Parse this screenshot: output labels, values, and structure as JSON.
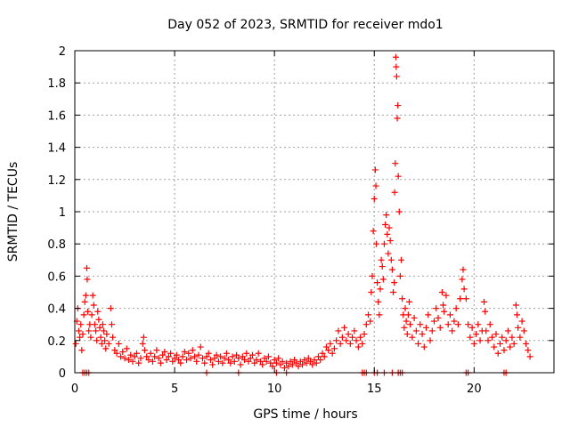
{
  "chart_data": {
    "type": "scatter",
    "title": "Day 052 of 2023, SRMTID for receiver mdo1",
    "xlabel": "GPS time / hours",
    "ylabel": "SRMTID / TECUs",
    "xlim": [
      0,
      24
    ],
    "ylim": [
      0,
      2
    ],
    "x_ticks": [
      0,
      5,
      10,
      15,
      20
    ],
    "y_ticks": [
      0,
      0.2,
      0.4,
      0.6,
      0.8,
      1,
      1.2,
      1.4,
      1.6,
      1.8,
      2
    ],
    "x_tick_labels": [
      "0",
      "5",
      "10",
      "15",
      "20"
    ],
    "y_tick_labels": [
      "0",
      "0.2",
      "0.4",
      "0.6",
      "0.8",
      "1",
      "1.2",
      "1.4",
      "1.6",
      "1.8",
      "2"
    ],
    "grid": true,
    "marker": "+",
    "series": [
      {
        "name": "SRMTID",
        "color": "#ff0000",
        "points": [
          [
            0.05,
            0.18
          ],
          [
            0.1,
            0.32
          ],
          [
            0.15,
            0.4
          ],
          [
            0.2,
            0.26
          ],
          [
            0.25,
            0.22
          ],
          [
            0.3,
            0.3
          ],
          [
            0.35,
            0.14
          ],
          [
            0.4,
            0.24
          ],
          [
            0.45,
            0.36
          ],
          [
            0.5,
            0.44
          ],
          [
            0.55,
            0.48
          ],
          [
            0.6,
            0.65
          ],
          [
            0.62,
            0.58
          ],
          [
            0.65,
            0.38
          ],
          [
            0.7,
            0.26
          ],
          [
            0.75,
            0.3
          ],
          [
            0.8,
            0.22
          ],
          [
            0.85,
            0.36
          ],
          [
            0.9,
            0.48
          ],
          [
            0.95,
            0.42
          ],
          [
            1.0,
            0.3
          ],
          [
            1.05,
            0.26
          ],
          [
            1.1,
            0.2
          ],
          [
            1.15,
            0.38
          ],
          [
            1.2,
            0.33
          ],
          [
            1.25,
            0.28
          ],
          [
            1.3,
            0.22
          ],
          [
            1.35,
            0.18
          ],
          [
            1.4,
            0.3
          ],
          [
            1.45,
            0.26
          ],
          [
            1.5,
            0.2
          ],
          [
            1.55,
            0.15
          ],
          [
            1.6,
            0.24
          ],
          [
            1.7,
            0.18
          ],
          [
            1.8,
            0.4
          ],
          [
            1.85,
            0.3
          ],
          [
            1.9,
            0.22
          ],
          [
            2.0,
            0.14
          ],
          [
            2.1,
            0.12
          ],
          [
            2.2,
            0.18
          ],
          [
            2.3,
            0.1
          ],
          [
            2.4,
            0.13
          ],
          [
            2.5,
            0.09
          ],
          [
            2.6,
            0.15
          ],
          [
            2.7,
            0.08
          ],
          [
            2.8,
            0.11
          ],
          [
            2.9,
            0.07
          ],
          [
            3.0,
            0.1
          ],
          [
            3.1,
            0.12
          ],
          [
            3.2,
            0.06
          ],
          [
            3.3,
            0.09
          ],
          [
            3.4,
            0.18
          ],
          [
            3.45,
            0.22
          ],
          [
            3.5,
            0.14
          ],
          [
            3.6,
            0.1
          ],
          [
            3.7,
            0.08
          ],
          [
            3.8,
            0.12
          ],
          [
            3.9,
            0.07
          ],
          [
            4.0,
            0.1
          ],
          [
            4.1,
            0.14
          ],
          [
            4.2,
            0.09
          ],
          [
            4.3,
            0.06
          ],
          [
            4.4,
            0.11
          ],
          [
            4.5,
            0.13
          ],
          [
            4.6,
            0.08
          ],
          [
            4.7,
            0.1
          ],
          [
            4.8,
            0.12
          ],
          [
            4.9,
            0.07
          ],
          [
            5.0,
            0.09
          ],
          [
            5.1,
            0.11
          ],
          [
            5.2,
            0.08
          ],
          [
            5.3,
            0.06
          ],
          [
            5.4,
            0.1
          ],
          [
            5.5,
            0.13
          ],
          [
            5.6,
            0.08
          ],
          [
            5.7,
            0.12
          ],
          [
            5.8,
            0.09
          ],
          [
            5.9,
            0.14
          ],
          [
            6.0,
            0.1
          ],
          [
            6.1,
            0.07
          ],
          [
            6.2,
            0.11
          ],
          [
            6.3,
            0.16
          ],
          [
            6.4,
            0.09
          ],
          [
            6.5,
            0.06
          ],
          [
            6.6,
            0.1
          ],
          [
            6.7,
            0.12
          ],
          [
            6.8,
            0.08
          ],
          [
            6.9,
            0.05
          ],
          [
            7.0,
            0.09
          ],
          [
            7.1,
            0.11
          ],
          [
            7.2,
            0.07
          ],
          [
            7.3,
            0.1
          ],
          [
            7.4,
            0.06
          ],
          [
            7.5,
            0.09
          ],
          [
            7.6,
            0.12
          ],
          [
            7.7,
            0.08
          ],
          [
            7.8,
            0.06
          ],
          [
            7.9,
            0.1
          ],
          [
            8.0,
            0.07
          ],
          [
            8.1,
            0.11
          ],
          [
            8.2,
            0.09
          ],
          [
            8.3,
            0.05
          ],
          [
            8.4,
            0.1
          ],
          [
            8.5,
            0.08
          ],
          [
            8.6,
            0.12
          ],
          [
            8.7,
            0.07
          ],
          [
            8.8,
            0.09
          ],
          [
            8.9,
            0.11
          ],
          [
            9.0,
            0.06
          ],
          [
            9.1,
            0.08
          ],
          [
            9.2,
            0.12
          ],
          [
            9.3,
            0.07
          ],
          [
            9.4,
            0.05
          ],
          [
            9.5,
            0.09
          ],
          [
            9.6,
            0.07
          ],
          [
            9.7,
            0.1
          ],
          [
            9.8,
            0.06
          ],
          [
            9.9,
            0.04
          ],
          [
            10.0,
            0.08
          ],
          [
            10.1,
            0.06
          ],
          [
            10.2,
            0.09
          ],
          [
            10.3,
            0.05
          ],
          [
            10.4,
            0.07
          ],
          [
            10.5,
            0.03
          ],
          [
            10.6,
            0.06
          ],
          [
            10.7,
            0.04
          ],
          [
            10.8,
            0.07
          ],
          [
            10.9,
            0.05
          ],
          [
            11.0,
            0.08
          ],
          [
            11.1,
            0.06
          ],
          [
            11.2,
            0.04
          ],
          [
            11.3,
            0.07
          ],
          [
            11.4,
            0.05
          ],
          [
            11.5,
            0.08
          ],
          [
            11.6,
            0.06
          ],
          [
            11.7,
            0.09
          ],
          [
            11.8,
            0.07
          ],
          [
            11.9,
            0.05
          ],
          [
            12.0,
            0.08
          ],
          [
            12.1,
            0.06
          ],
          [
            12.2,
            0.1
          ],
          [
            12.3,
            0.08
          ],
          [
            12.4,
            0.12
          ],
          [
            12.5,
            0.1
          ],
          [
            12.6,
            0.16
          ],
          [
            12.7,
            0.14
          ],
          [
            12.8,
            0.18
          ],
          [
            12.9,
            0.12
          ],
          [
            13.0,
            0.15
          ],
          [
            13.1,
            0.2
          ],
          [
            13.2,
            0.26
          ],
          [
            13.3,
            0.18
          ],
          [
            13.4,
            0.22
          ],
          [
            13.5,
            0.28
          ],
          [
            13.6,
            0.2
          ],
          [
            13.7,
            0.24
          ],
          [
            13.8,
            0.18
          ],
          [
            13.9,
            0.22
          ],
          [
            14.0,
            0.26
          ],
          [
            14.1,
            0.2
          ],
          [
            14.2,
            0.16
          ],
          [
            14.3,
            0.22
          ],
          [
            14.4,
            0.18
          ],
          [
            14.5,
            0.24
          ],
          [
            14.6,
            0.3
          ],
          [
            14.7,
            0.36
          ],
          [
            14.8,
            0.32
          ],
          [
            14.85,
            0.5
          ],
          [
            14.9,
            0.6
          ],
          [
            14.95,
            0.88
          ],
          [
            15.0,
            1.08
          ],
          [
            15.05,
            1.26
          ],
          [
            15.08,
            1.16
          ],
          [
            15.1,
            0.8
          ],
          [
            15.15,
            0.56
          ],
          [
            15.2,
            0.44
          ],
          [
            15.25,
            0.36
          ],
          [
            15.3,
            0.52
          ],
          [
            15.35,
            0.7
          ],
          [
            15.4,
            0.66
          ],
          [
            15.45,
            0.58
          ],
          [
            15.5,
            0.8
          ],
          [
            15.55,
            0.92
          ],
          [
            15.6,
            0.98
          ],
          [
            15.65,
            0.86
          ],
          [
            15.7,
            0.74
          ],
          [
            15.75,
            0.9
          ],
          [
            15.8,
            0.82
          ],
          [
            15.85,
            0.7
          ],
          [
            15.9,
            0.64
          ],
          [
            15.95,
            0.5
          ],
          [
            16.0,
            0.56
          ],
          [
            16.02,
            1.12
          ],
          [
            16.05,
            1.3
          ],
          [
            16.08,
            1.96
          ],
          [
            16.1,
            1.9
          ],
          [
            16.12,
            1.84
          ],
          [
            16.15,
            1.58
          ],
          [
            16.18,
            1.66
          ],
          [
            16.2,
            1.22
          ],
          [
            16.25,
            1.0
          ],
          [
            16.3,
            0.6
          ],
          [
            16.35,
            0.7
          ],
          [
            16.4,
            0.46
          ],
          [
            16.45,
            0.36
          ],
          [
            16.5,
            0.28
          ],
          [
            16.55,
            0.4
          ],
          [
            16.6,
            0.32
          ],
          [
            16.65,
            0.24
          ],
          [
            16.7,
            0.36
          ],
          [
            16.75,
            0.44
          ],
          [
            16.8,
            0.3
          ],
          [
            16.9,
            0.22
          ],
          [
            17.0,
            0.34
          ],
          [
            17.1,
            0.26
          ],
          [
            17.2,
            0.18
          ],
          [
            17.3,
            0.3
          ],
          [
            17.4,
            0.24
          ],
          [
            17.5,
            0.16
          ],
          [
            17.6,
            0.28
          ],
          [
            17.7,
            0.36
          ],
          [
            17.8,
            0.2
          ],
          [
            17.9,
            0.26
          ],
          [
            18.0,
            0.32
          ],
          [
            18.1,
            0.4
          ],
          [
            18.2,
            0.34
          ],
          [
            18.3,
            0.28
          ],
          [
            18.4,
            0.5
          ],
          [
            18.45,
            0.42
          ],
          [
            18.5,
            0.38
          ],
          [
            18.6,
            0.48
          ],
          [
            18.7,
            0.3
          ],
          [
            18.8,
            0.36
          ],
          [
            18.9,
            0.26
          ],
          [
            19.0,
            0.32
          ],
          [
            19.1,
            0.4
          ],
          [
            19.2,
            0.3
          ],
          [
            19.3,
            0.46
          ],
          [
            19.4,
            0.58
          ],
          [
            19.45,
            0.64
          ],
          [
            19.5,
            0.52
          ],
          [
            19.6,
            0.46
          ],
          [
            19.7,
            0.3
          ],
          [
            19.8,
            0.22
          ],
          [
            19.9,
            0.28
          ],
          [
            20.0,
            0.18
          ],
          [
            20.1,
            0.24
          ],
          [
            20.2,
            0.3
          ],
          [
            20.3,
            0.2
          ],
          [
            20.4,
            0.26
          ],
          [
            20.5,
            0.44
          ],
          [
            20.55,
            0.38
          ],
          [
            20.6,
            0.26
          ],
          [
            20.7,
            0.2
          ],
          [
            20.8,
            0.3
          ],
          [
            20.9,
            0.22
          ],
          [
            21.0,
            0.16
          ],
          [
            21.1,
            0.24
          ],
          [
            21.2,
            0.12
          ],
          [
            21.3,
            0.18
          ],
          [
            21.4,
            0.22
          ],
          [
            21.5,
            0.14
          ],
          [
            21.6,
            0.2
          ],
          [
            21.7,
            0.26
          ],
          [
            21.8,
            0.16
          ],
          [
            21.9,
            0.22
          ],
          [
            22.0,
            0.18
          ],
          [
            22.1,
            0.42
          ],
          [
            22.15,
            0.36
          ],
          [
            22.2,
            0.28
          ],
          [
            22.3,
            0.22
          ],
          [
            22.4,
            0.32
          ],
          [
            22.5,
            0.26
          ],
          [
            22.6,
            0.18
          ],
          [
            22.7,
            0.14
          ],
          [
            22.8,
            0.1
          ],
          [
            0.4,
            0
          ],
          [
            0.5,
            0
          ],
          [
            0.6,
            0
          ],
          [
            0.7,
            0
          ],
          [
            6.6,
            0
          ],
          [
            8.2,
            0
          ],
          [
            10.1,
            0
          ],
          [
            10.6,
            0
          ],
          [
            14.4,
            0
          ],
          [
            14.5,
            0
          ],
          [
            14.6,
            0
          ],
          [
            15.0,
            0
          ],
          [
            15.15,
            0
          ],
          [
            15.5,
            0
          ],
          [
            15.9,
            0
          ],
          [
            16.2,
            0
          ],
          [
            16.3,
            0
          ],
          [
            16.4,
            0
          ],
          [
            19.6,
            0
          ],
          [
            19.7,
            0
          ],
          [
            21.5,
            0
          ],
          [
            21.6,
            0
          ]
        ]
      }
    ]
  }
}
